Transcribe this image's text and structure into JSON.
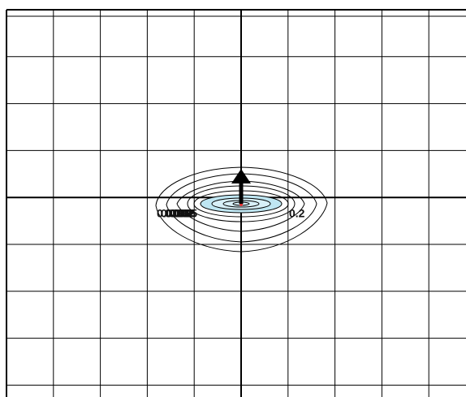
{
  "contour_labels_left": [
    "0.0002",
    "0.0005",
    "0.002",
    "0.005",
    "0.02",
    "2."
  ],
  "contour_label_right": "0.2"
}
